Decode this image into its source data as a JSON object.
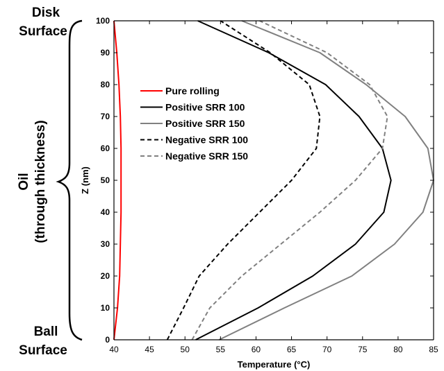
{
  "annotations": {
    "top": [
      "Disk",
      "Surface"
    ],
    "middle": [
      "Oil",
      "(through thickness)"
    ],
    "bottom": [
      "Ball",
      "Surface"
    ]
  },
  "chart_data": {
    "type": "line",
    "title": "",
    "xlabel": "Temperature (°C)",
    "ylabel": "Z (nm)",
    "xlim": [
      40,
      85
    ],
    "ylim": [
      0,
      100
    ],
    "xticks": [
      40,
      45,
      50,
      55,
      60,
      65,
      70,
      75,
      80,
      85
    ],
    "yticks": [
      0,
      10,
      20,
      30,
      40,
      50,
      60,
      70,
      80,
      90,
      100
    ],
    "grid": false,
    "legend_position": "upper-left inside",
    "series": [
      {
        "name": "Pure rolling",
        "color": "#ff0000",
        "dash": "solid",
        "x": [
          40.0,
          40.5,
          40.8,
          40.9,
          41.0,
          41.0,
          41.0,
          40.9,
          40.7,
          40.4,
          40.0
        ],
        "y": [
          0,
          10,
          20,
          30,
          40,
          50,
          60,
          70,
          80,
          90,
          100
        ]
      },
      {
        "name": "Positive SRR 100",
        "color": "#000000",
        "dash": "solid",
        "x": [
          51.5,
          60.3,
          68.0,
          74.0,
          78.0,
          79.0,
          77.8,
          74.5,
          69.8,
          61.8,
          51.8
        ],
        "y": [
          0,
          10,
          20,
          30,
          40,
          50,
          60,
          70,
          80,
          90,
          100
        ]
      },
      {
        "name": "Positive SRR 150",
        "color": "#808080",
        "dash": "solid",
        "x": [
          54.8,
          64.0,
          73.5,
          79.5,
          83.5,
          85.0,
          84.2,
          81.0,
          75.5,
          69.0,
          58.0
        ],
        "y": [
          0,
          10,
          20,
          30,
          40,
          50,
          60,
          70,
          80,
          90,
          100
        ]
      },
      {
        "name": "Negative SRR 100",
        "color": "#000000",
        "dash": "dashed",
        "x": [
          47.5,
          49.8,
          52.0,
          56.0,
          60.5,
          65.0,
          68.5,
          69.0,
          67.5,
          62.0,
          55.0
        ],
        "y": [
          0,
          10,
          20,
          30,
          40,
          50,
          60,
          70,
          80,
          90,
          100
        ]
      },
      {
        "name": "Negative SRR 150",
        "color": "#808080",
        "dash": "dashed",
        "x": [
          51.0,
          53.5,
          58.0,
          63.5,
          69.0,
          74.0,
          77.8,
          78.5,
          76.0,
          70.0,
          60.5
        ],
        "y": [
          0,
          10,
          20,
          30,
          40,
          50,
          60,
          70,
          80,
          90,
          100
        ]
      }
    ]
  }
}
